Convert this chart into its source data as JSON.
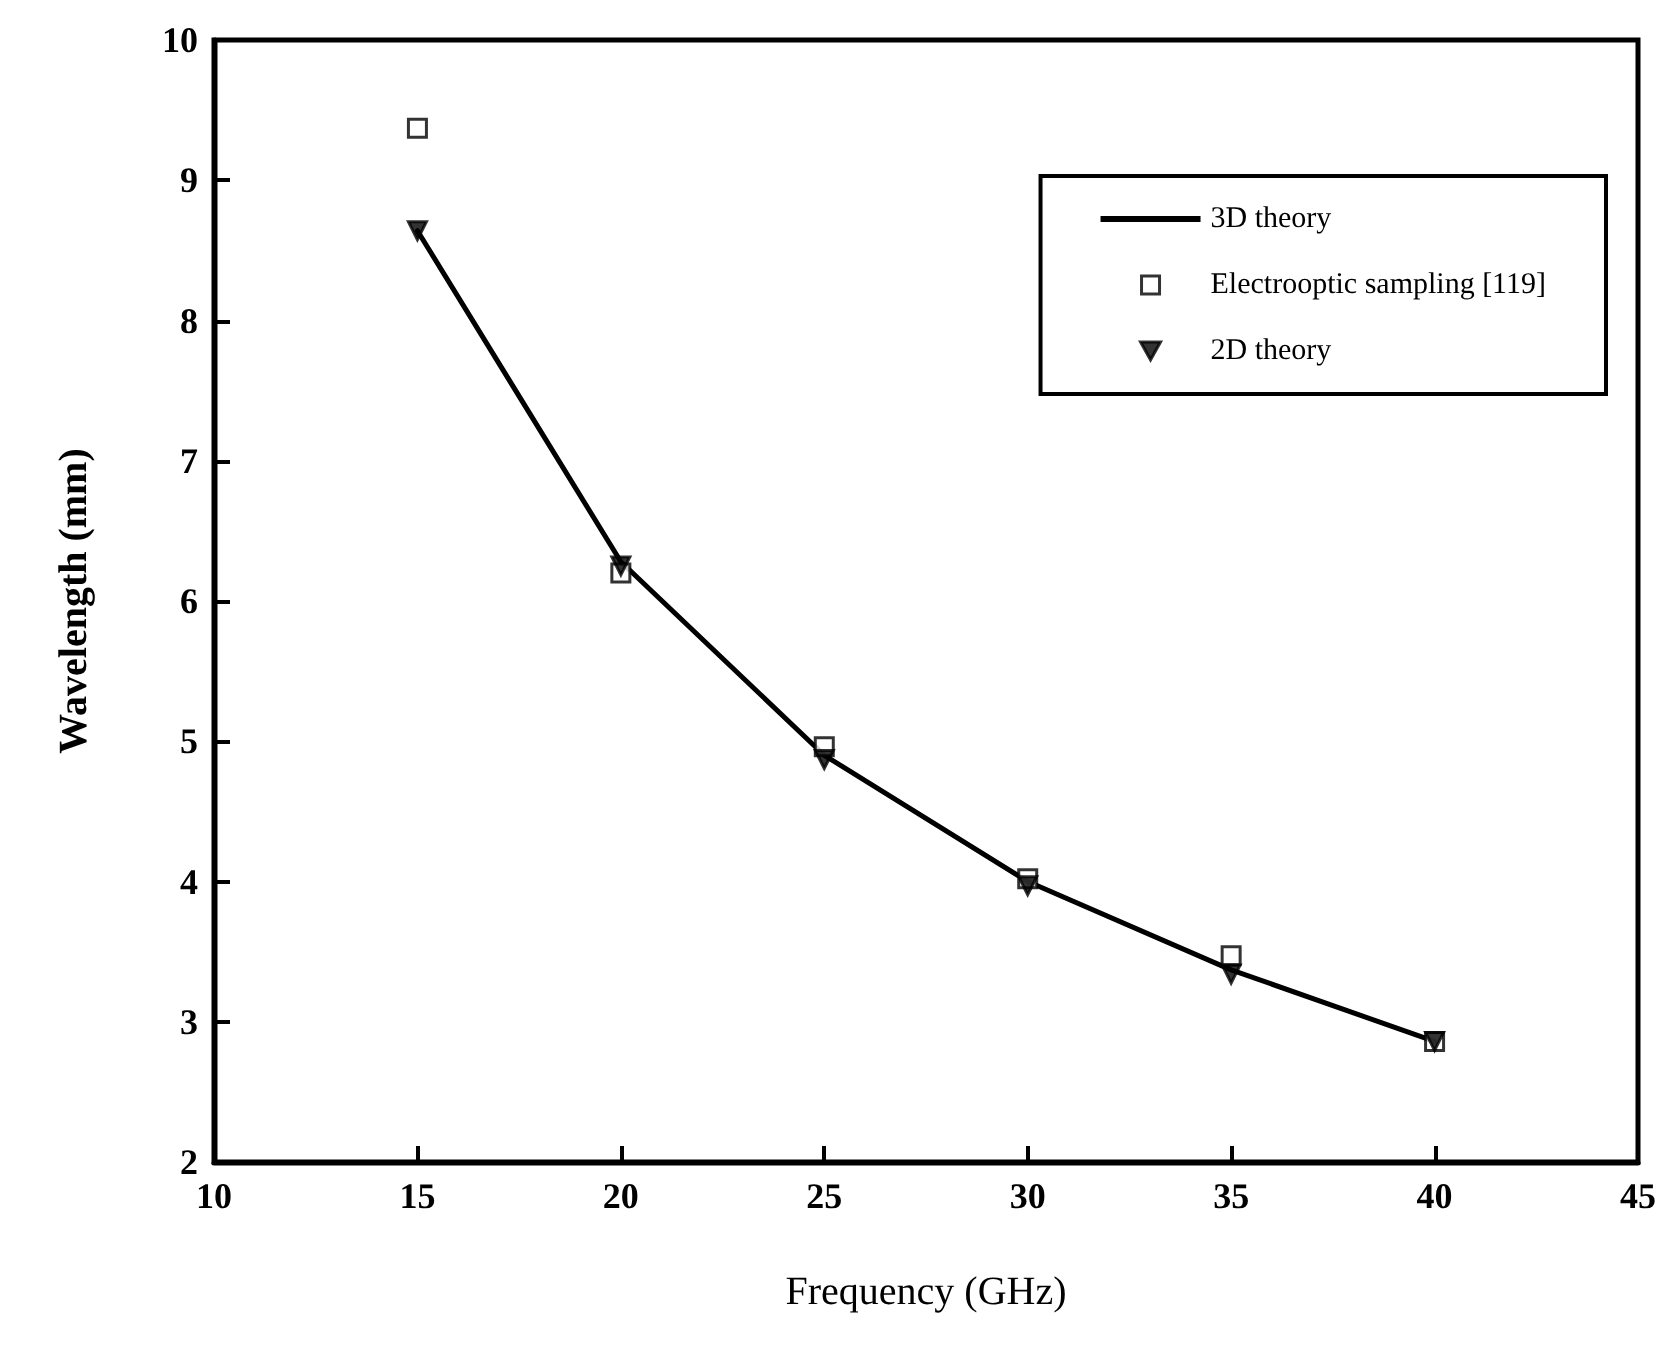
{
  "chart_data": {
    "type": "line",
    "xlabel": "Frequency (GHz)",
    "ylabel": "Wavelength (mm)",
    "xlim": [
      10,
      45
    ],
    "xticks": [
      10,
      15,
      20,
      25,
      30,
      35,
      40,
      45
    ],
    "ylim": [
      2,
      10
    ],
    "yticks": [
      2,
      3,
      4,
      5,
      6,
      7,
      8,
      9,
      10
    ],
    "grid": false,
    "legend": "top right",
    "series": [
      {
        "name": "3D theory",
        "color": "#000000",
        "marker": "none",
        "line_style": "solid",
        "x": [
          15,
          20,
          25,
          30,
          35,
          40
        ],
        "values": [
          8.64,
          6.28,
          4.9,
          4.0,
          3.37,
          2.86
        ]
      },
      {
        "name": "Electrooptic sampling [119]",
        "type": "scatter",
        "color": "#000000",
        "marker": "square",
        "x": [
          15,
          20,
          25,
          30,
          35,
          40
        ],
        "values": [
          9.37,
          6.2,
          4.96,
          4.02,
          3.47,
          2.86
        ]
      },
      {
        "name": "2D theory",
        "type": "scatter",
        "color": "#000000",
        "marker": "triangle",
        "x": [
          15,
          20,
          25,
          30,
          35,
          40
        ],
        "values": [
          8.64,
          6.25,
          4.87,
          3.97,
          3.34,
          2.86
        ]
      }
    ]
  }
}
